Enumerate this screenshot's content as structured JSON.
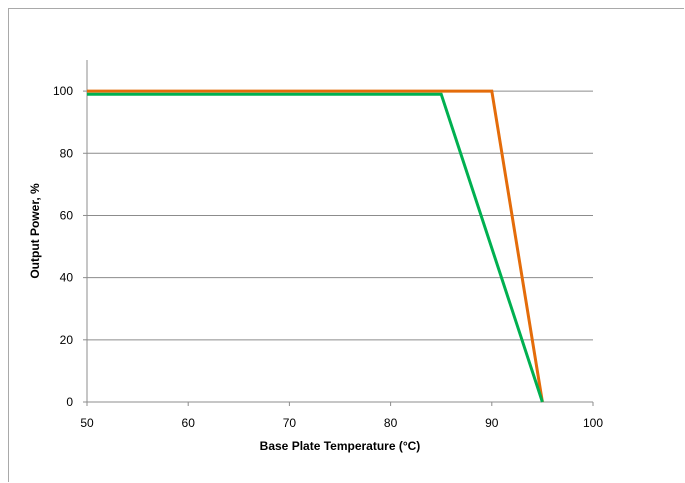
{
  "chart_data": {
    "type": "line",
    "title": "",
    "xlabel": "Base Plate Temperature (°C)",
    "ylabel": "Output Power, %",
    "xlim": [
      50,
      100
    ],
    "ylim": [
      0,
      110
    ],
    "x_ticks": [
      50,
      60,
      70,
      80,
      90,
      100
    ],
    "y_ticks": [
      0,
      20,
      40,
      60,
      80,
      100
    ],
    "grid": "horizontal",
    "legend": "none",
    "series": [
      {
        "color": "#e46c0a",
        "x": [
          50,
          90,
          95
        ],
        "y": [
          100,
          100,
          0
        ]
      },
      {
        "color": "#00b050",
        "x": [
          50,
          85,
          95
        ],
        "y": [
          99,
          99,
          0
        ]
      }
    ]
  }
}
